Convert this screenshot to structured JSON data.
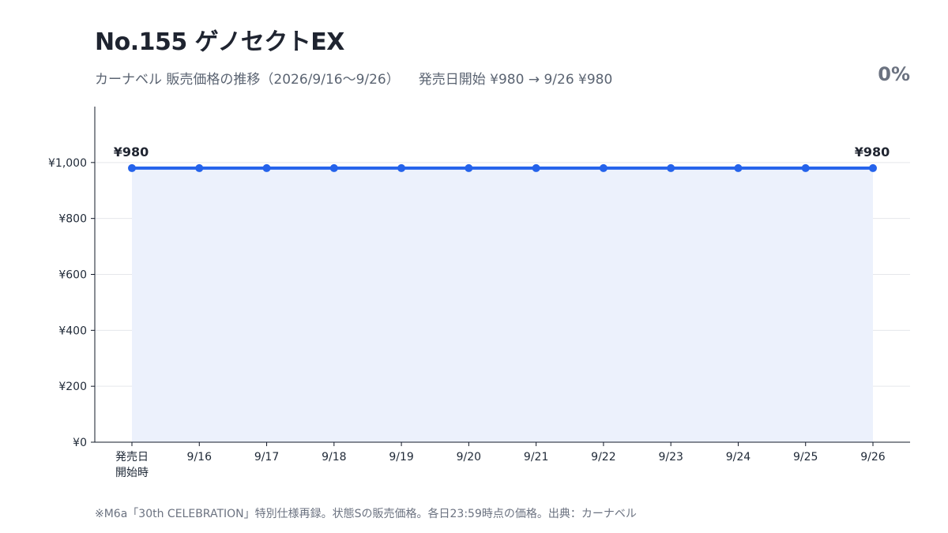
{
  "title": "No.155 ゲノセクトEX",
  "subtitle": "カーナベル 販売価格の推移（2026/9/16〜9/26）",
  "summary": "発売日開始 ¥980 → 9/26 ¥980",
  "change_percent": "0%",
  "footnote": "※M6a「30th CELEBRATION」特別仕様再録。状態Sの販売価格。各日23:59時点の価格。出典：カーナベル",
  "colors": {
    "line": "#2563eb",
    "fill": "#ecf1fc",
    "grid": "#e5e7eb",
    "axis": "#111827"
  },
  "chart_data": {
    "type": "area",
    "categories": [
      "発売日\n開始時",
      "9/16",
      "9/17",
      "9/18",
      "9/19",
      "9/20",
      "9/21",
      "9/22",
      "9/23",
      "9/24",
      "9/25",
      "9/26"
    ],
    "series": [
      {
        "values": [
          980,
          980,
          980,
          980,
          980,
          980,
          980,
          980,
          980,
          980,
          980,
          980
        ]
      }
    ],
    "ylim": [
      0,
      1200
    ],
    "yticks": [
      0,
      200,
      400,
      600,
      800,
      1000
    ],
    "ytick_labels": [
      "¥0",
      "¥200",
      "¥400",
      "¥600",
      "¥800",
      "¥1,000"
    ],
    "data_labels": [
      {
        "index": 0,
        "text": "¥980"
      },
      {
        "index": 11,
        "text": "¥980"
      }
    ],
    "grid": true,
    "legend": "none"
  }
}
